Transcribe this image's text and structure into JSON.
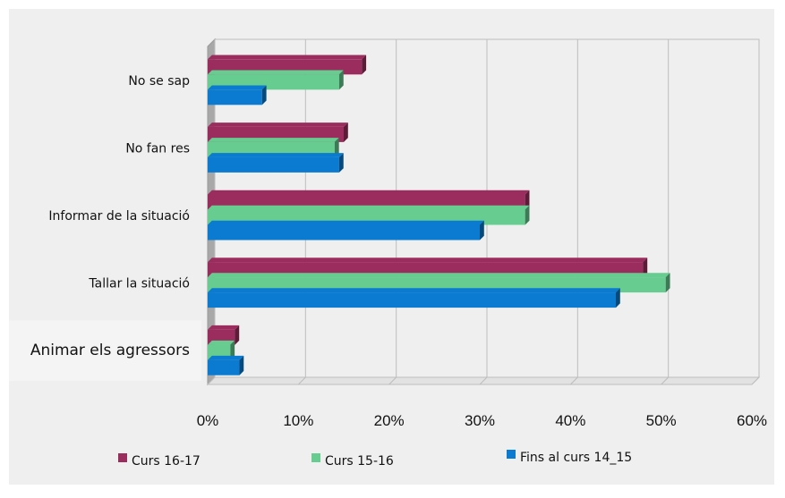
{
  "chart_data": {
    "type": "bar",
    "orientation": "horizontal",
    "style": "3d",
    "categories": [
      "No se sap",
      "No fan res",
      "Informar de la situació",
      "Tallar la situació",
      "Animar els agressors"
    ],
    "series": [
      {
        "name": "Curs 16-17",
        "color": "#9b2d5e",
        "values": [
          17,
          15,
          35,
          48,
          3
        ]
      },
      {
        "name": "Curs 15-16",
        "color": "#66cc8f",
        "values": [
          14.5,
          14,
          35,
          50.5,
          2.5
        ]
      },
      {
        "name": "Fins al curs  14_15",
        "color": "#0a7bd0",
        "values": [
          6,
          14.5,
          30,
          45,
          3.5
        ]
      }
    ],
    "x_ticks": [
      "0%",
      "10%",
      "20%",
      "30%",
      "40%",
      "50%",
      "60%"
    ],
    "xlim": [
      0,
      60
    ],
    "grid": true,
    "legend_position": "bottom"
  }
}
